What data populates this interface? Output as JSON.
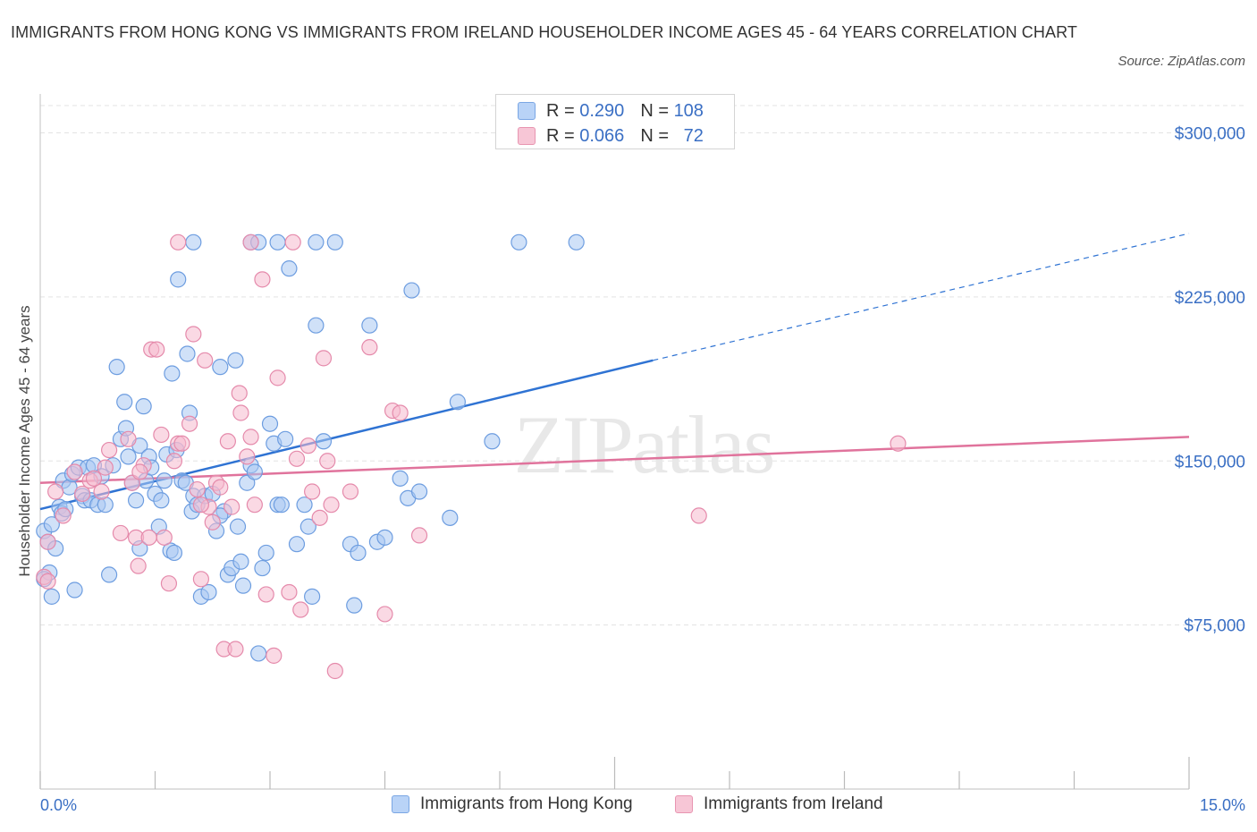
{
  "chart_data": {
    "type": "scatter",
    "title": "IMMIGRANTS FROM HONG KONG VS IMMIGRANTS FROM IRELAND HOUSEHOLDER INCOME AGES 45 - 64 YEARS CORRELATION CHART",
    "source": "Source: ZipAtlas.com",
    "watermark": "ZIPatlas",
    "xlabel": "",
    "ylabel": "Householder Income Ages 45 - 64 years",
    "xlim": [
      0,
      15
    ],
    "ylim": [
      0,
      312500
    ],
    "x_tick_labels": [
      "0.0%",
      "15.0%"
    ],
    "y_ticks": [
      {
        "value": 75000,
        "label": "$75,000"
      },
      {
        "value": 150000,
        "label": "$150,000"
      },
      {
        "value": 225000,
        "label": "$225,000"
      },
      {
        "value": 300000,
        "label": "$300,000"
      }
    ],
    "colors": {
      "blue_fill": "#a9c8f2",
      "blue_stroke": "#6d9de0",
      "blue_line": "#2f73d3",
      "pink_fill": "#f5b9cd",
      "pink_stroke": "#e58aab",
      "pink_line": "#e0739c",
      "axis_label": "#3a6fc4",
      "grid": "#e3e3e3"
    },
    "legend": [
      {
        "r_label": "R =",
        "r_value": "0.290",
        "n_label": "N =",
        "n_value": "108"
      },
      {
        "r_label": "R =",
        "r_value": "0.066",
        "n_label": "N =",
        "n_value": "72"
      }
    ],
    "series": [
      {
        "name": "Immigrants from Hong Kong",
        "color": "#a9c8f2",
        "trend": {
          "x0": 0,
          "y0": 128000,
          "x1": 8.0,
          "y1": 196000,
          "x2": 15.0,
          "y2": 254000
        },
        "points": [
          [
            0.05,
            118000
          ],
          [
            0.1,
            113000
          ],
          [
            0.12,
            99000
          ],
          [
            0.15,
            88000
          ],
          [
            0.2,
            110000
          ],
          [
            0.25,
            129000
          ],
          [
            0.28,
            126000
          ],
          [
            0.3,
            141000
          ],
          [
            0.33,
            128000
          ],
          [
            0.38,
            138000
          ],
          [
            0.42,
            144000
          ],
          [
            0.45,
            91000
          ],
          [
            0.5,
            147000
          ],
          [
            0.55,
            134000
          ],
          [
            0.58,
            132000
          ],
          [
            0.62,
            147000
          ],
          [
            0.66,
            132000
          ],
          [
            0.7,
            148000
          ],
          [
            0.75,
            130000
          ],
          [
            0.8,
            143000
          ],
          [
            0.85,
            130000
          ],
          [
            0.9,
            98000
          ],
          [
            0.95,
            148000
          ],
          [
            1.0,
            193000
          ],
          [
            1.05,
            160000
          ],
          [
            1.1,
            177000
          ],
          [
            1.12,
            165000
          ],
          [
            1.15,
            152000
          ],
          [
            1.2,
            140000
          ],
          [
            1.25,
            132000
          ],
          [
            1.3,
            157000
          ],
          [
            1.35,
            175000
          ],
          [
            1.38,
            141000
          ],
          [
            1.42,
            152000
          ],
          [
            1.45,
            147000
          ],
          [
            1.5,
            135000
          ],
          [
            1.55,
            120000
          ],
          [
            1.58,
            132000
          ],
          [
            1.62,
            141000
          ],
          [
            1.65,
            153000
          ],
          [
            1.7,
            109000
          ],
          [
            1.72,
            190000
          ],
          [
            1.75,
            108000
          ],
          [
            1.78,
            155000
          ],
          [
            1.8,
            233000
          ],
          [
            1.85,
            141000
          ],
          [
            1.9,
            140000
          ],
          [
            1.92,
            199000
          ],
          [
            1.95,
            172000
          ],
          [
            1.98,
            127000
          ],
          [
            2.0,
            134000
          ],
          [
            2.05,
            130000
          ],
          [
            2.1,
            88000
          ],
          [
            2.15,
            134000
          ],
          [
            2.2,
            90000
          ],
          [
            2.25,
            135000
          ],
          [
            2.3,
            118000
          ],
          [
            2.35,
            193000
          ],
          [
            2.4,
            127000
          ],
          [
            2.45,
            98000
          ],
          [
            2.5,
            101000
          ],
          [
            2.55,
            196000
          ],
          [
            2.58,
            120000
          ],
          [
            2.62,
            104000
          ],
          [
            2.65,
            93000
          ],
          [
            2.7,
            140000
          ],
          [
            2.75,
            148000
          ],
          [
            2.8,
            145000
          ],
          [
            2.85,
            62000
          ],
          [
            2.9,
            101000
          ],
          [
            2.95,
            108000
          ],
          [
            3.0,
            167000
          ],
          [
            3.05,
            158000
          ],
          [
            3.1,
            130000
          ],
          [
            3.15,
            130000
          ],
          [
            3.2,
            160000
          ],
          [
            3.25,
            238000
          ],
          [
            3.35,
            112000
          ],
          [
            3.45,
            130000
          ],
          [
            3.5,
            120000
          ],
          [
            3.55,
            88000
          ],
          [
            3.6,
            212000
          ],
          [
            3.7,
            159000
          ],
          [
            4.05,
            112000
          ],
          [
            4.1,
            84000
          ],
          [
            4.15,
            108000
          ],
          [
            4.3,
            212000
          ],
          [
            4.4,
            113000
          ],
          [
            4.5,
            115000
          ],
          [
            4.7,
            142000
          ],
          [
            4.8,
            133000
          ],
          [
            4.85,
            228000
          ],
          [
            4.95,
            136000
          ],
          [
            5.35,
            124000
          ],
          [
            5.45,
            177000
          ],
          [
            5.9,
            159000
          ],
          [
            2.0,
            250000
          ],
          [
            2.75,
            250000
          ],
          [
            2.85,
            250000
          ],
          [
            3.1,
            250000
          ],
          [
            3.6,
            250000
          ],
          [
            3.85,
            250000
          ],
          [
            6.25,
            250000
          ],
          [
            7.0,
            250000
          ],
          [
            0.05,
            96000
          ],
          [
            0.15,
            121000
          ],
          [
            1.3,
            110000
          ],
          [
            2.35,
            125000
          ]
        ]
      },
      {
        "name": "Immigrants from Ireland",
        "color": "#f5b9cd",
        "trend": {
          "x0": 0,
          "y0": 140000,
          "x1": 15.0,
          "y1": 161000
        },
        "points": [
          [
            0.05,
            97000
          ],
          [
            0.1,
            113000
          ],
          [
            0.2,
            136000
          ],
          [
            0.3,
            125000
          ],
          [
            0.45,
            145000
          ],
          [
            0.55,
            135000
          ],
          [
            0.65,
            141000
          ],
          [
            0.8,
            136000
          ],
          [
            0.85,
            147000
          ],
          [
            0.9,
            155000
          ],
          [
            1.05,
            117000
          ],
          [
            1.15,
            160000
          ],
          [
            1.2,
            140000
          ],
          [
            1.25,
            115000
          ],
          [
            1.28,
            102000
          ],
          [
            1.35,
            148000
          ],
          [
            1.42,
            115000
          ],
          [
            1.45,
            201000
          ],
          [
            1.52,
            201000
          ],
          [
            1.58,
            162000
          ],
          [
            1.62,
            115000
          ],
          [
            1.68,
            94000
          ],
          [
            1.75,
            150000
          ],
          [
            1.8,
            158000
          ],
          [
            1.85,
            158000
          ],
          [
            1.95,
            167000
          ],
          [
            2.0,
            208000
          ],
          [
            2.05,
            137000
          ],
          [
            2.1,
            96000
          ],
          [
            2.15,
            196000
          ],
          [
            2.2,
            129000
          ],
          [
            2.25,
            122000
          ],
          [
            2.3,
            140000
          ],
          [
            2.35,
            138000
          ],
          [
            2.4,
            64000
          ],
          [
            2.45,
            159000
          ],
          [
            2.5,
            129000
          ],
          [
            2.55,
            64000
          ],
          [
            2.6,
            181000
          ],
          [
            2.62,
            172000
          ],
          [
            2.7,
            152000
          ],
          [
            2.75,
            161000
          ],
          [
            2.8,
            130000
          ],
          [
            2.9,
            233000
          ],
          [
            2.95,
            89000
          ],
          [
            3.05,
            61000
          ],
          [
            3.1,
            188000
          ],
          [
            3.25,
            90000
          ],
          [
            3.35,
            151000
          ],
          [
            3.4,
            82000
          ],
          [
            3.5,
            157000
          ],
          [
            3.55,
            136000
          ],
          [
            3.65,
            124000
          ],
          [
            3.7,
            197000
          ],
          [
            3.75,
            150000
          ],
          [
            3.85,
            54000
          ],
          [
            4.05,
            136000
          ],
          [
            4.3,
            202000
          ],
          [
            4.5,
            80000
          ],
          [
            4.6,
            173000
          ],
          [
            4.7,
            172000
          ],
          [
            4.95,
            116000
          ],
          [
            8.6,
            125000
          ],
          [
            11.2,
            158000
          ],
          [
            1.8,
            250000
          ],
          [
            2.75,
            250000
          ],
          [
            3.3,
            250000
          ],
          [
            0.1,
            95000
          ],
          [
            0.7,
            142000
          ],
          [
            1.3,
            145000
          ],
          [
            2.1,
            130000
          ],
          [
            3.8,
            130000
          ]
        ]
      }
    ]
  }
}
